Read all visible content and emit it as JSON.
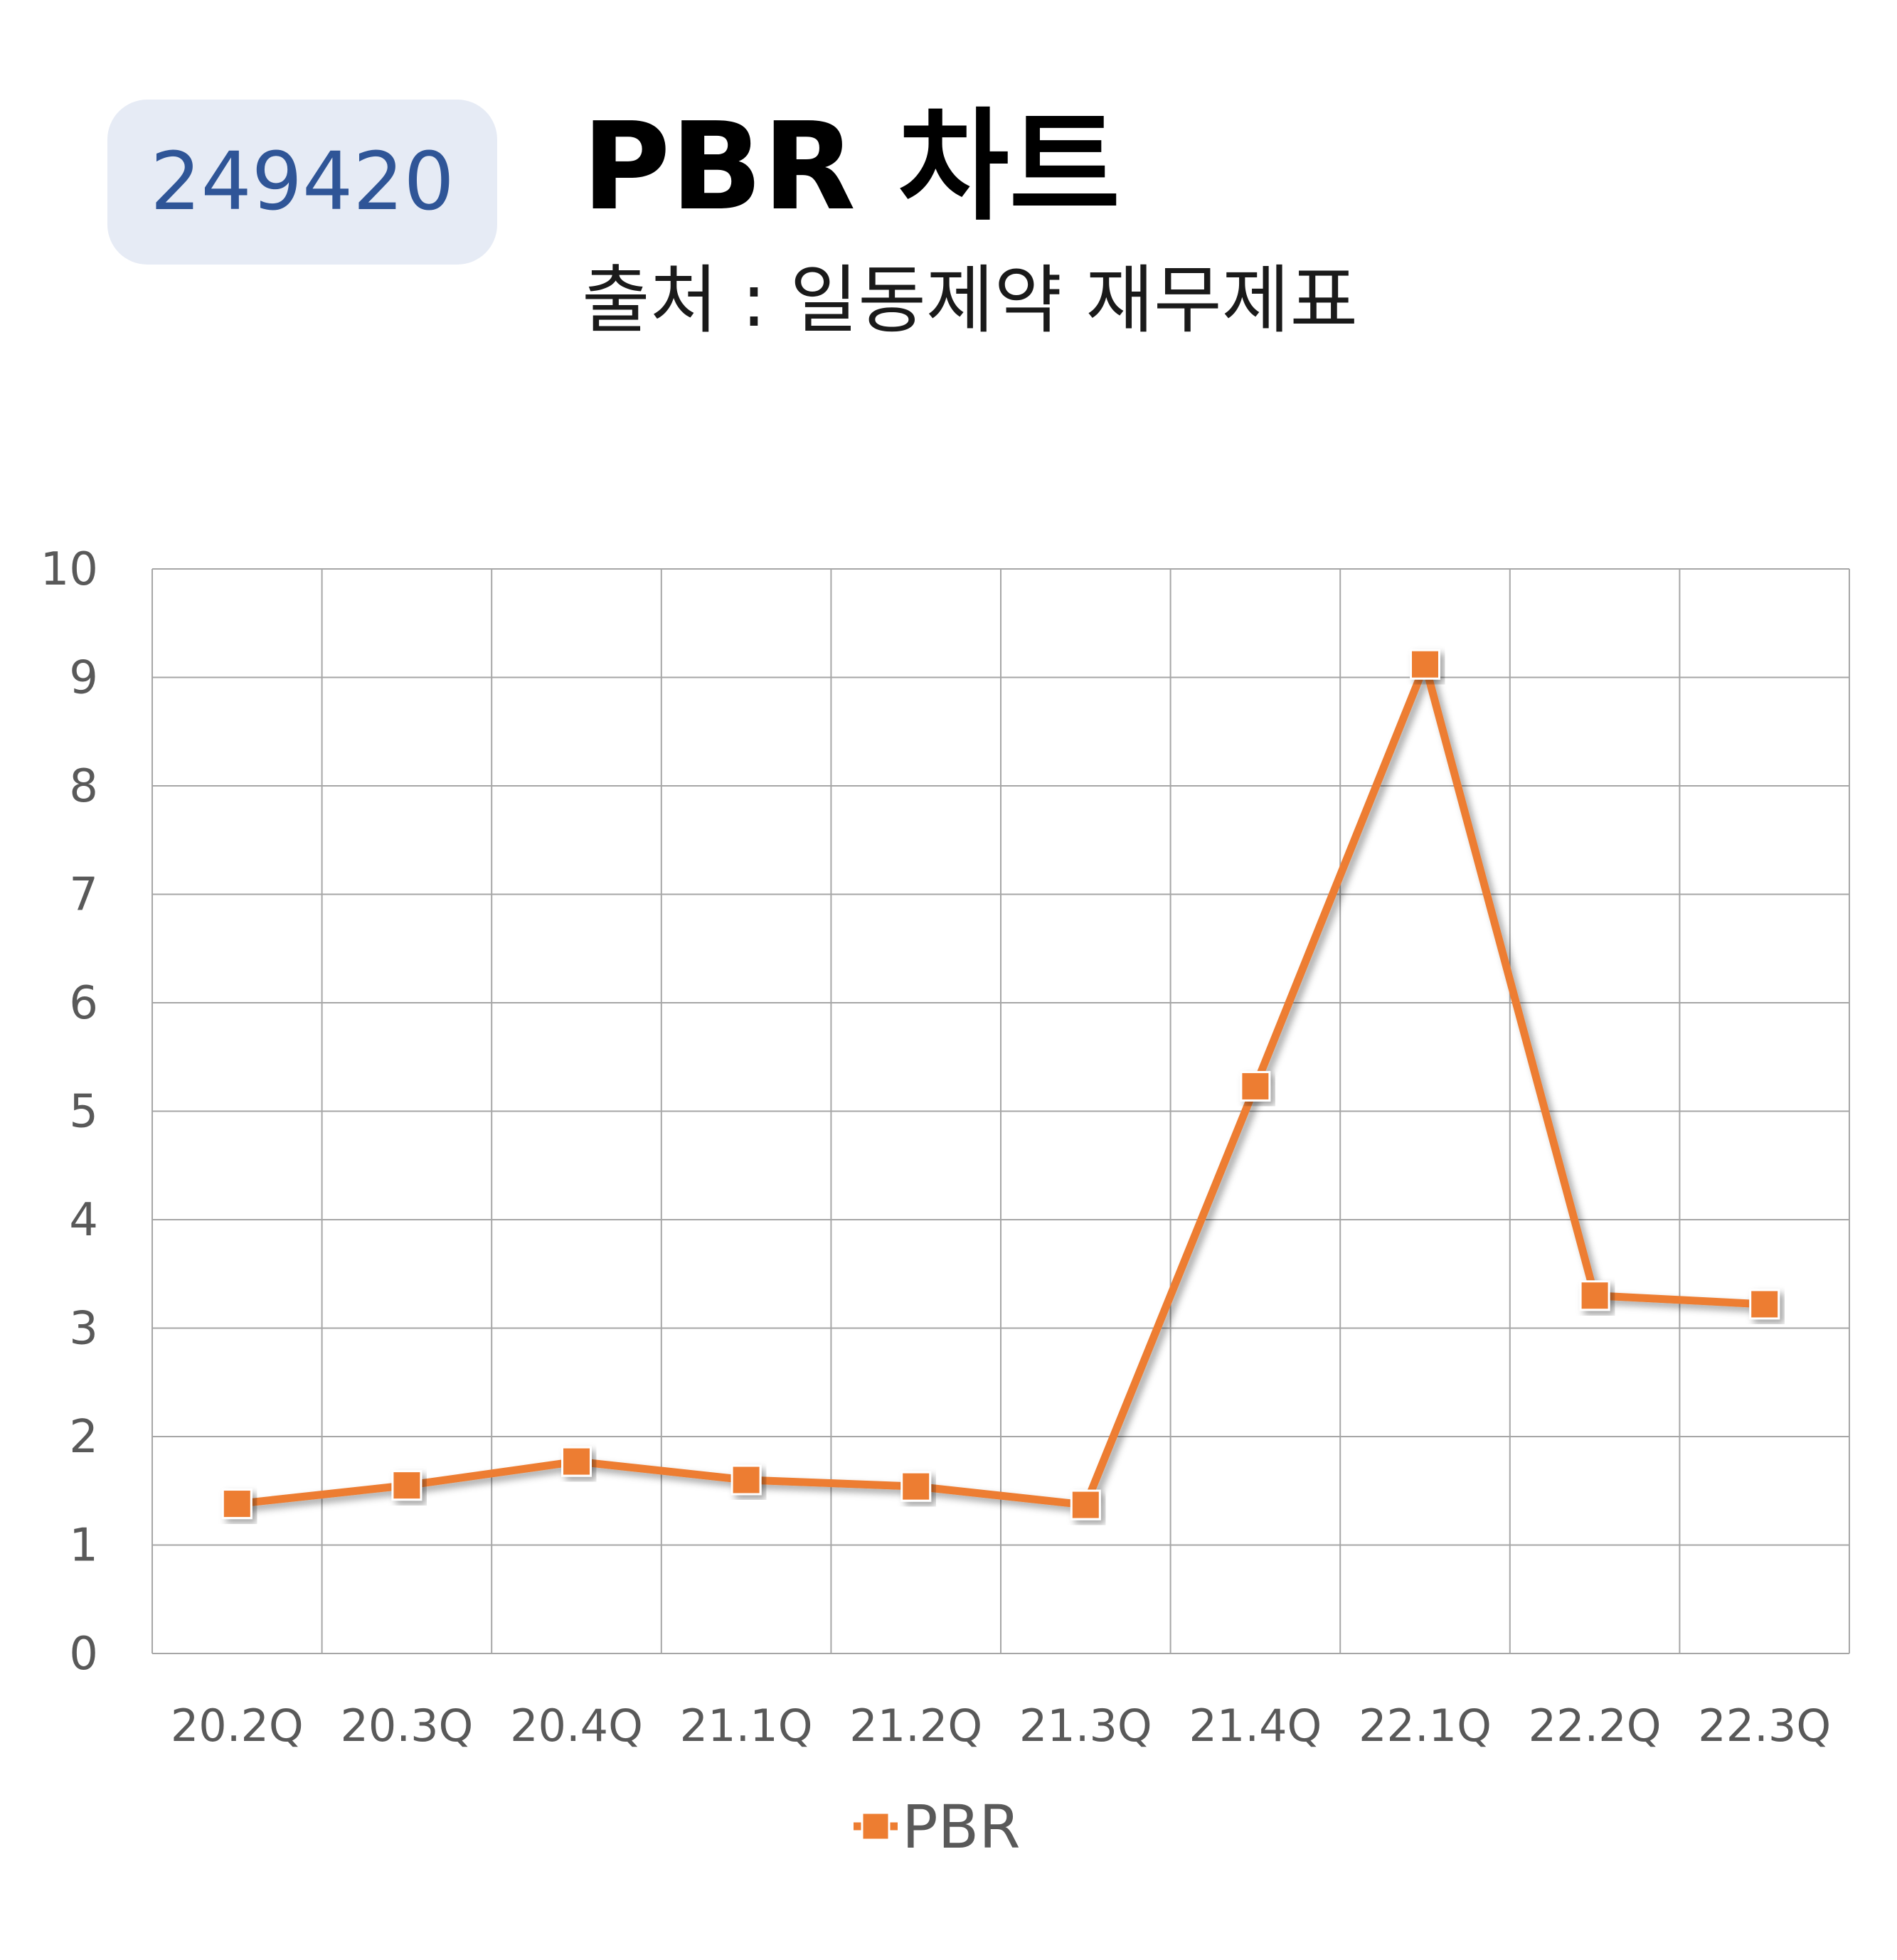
{
  "header": {
    "ticker": "249420",
    "title": "PBR 차트",
    "subtitle": "출처 : 일동제약 재무제표"
  },
  "colors": {
    "series": "#ed7d31",
    "badge_bg": "#e6ebf5",
    "badge_text": "#2f5597",
    "grid": "#a6a6a6",
    "tick_text": "#595959"
  },
  "chart_data": {
    "type": "line",
    "categories": [
      "20.2Q",
      "20.3Q",
      "20.4Q",
      "21.1Q",
      "21.2Q",
      "21.3Q",
      "21.4Q",
      "22.1Q",
      "22.2Q",
      "22.3Q"
    ],
    "series": [
      {
        "name": "PBR",
        "values": [
          1.38,
          1.55,
          1.77,
          1.6,
          1.54,
          1.37,
          5.23,
          9.12,
          3.3,
          3.22
        ]
      }
    ],
    "yticks": [
      "0",
      "1",
      "2",
      "3",
      "4",
      "5",
      "6",
      "7",
      "8",
      "9",
      "10"
    ],
    "ylim": [
      0,
      10
    ],
    "grid": true,
    "legend_position": "bottom",
    "marker": "square"
  }
}
